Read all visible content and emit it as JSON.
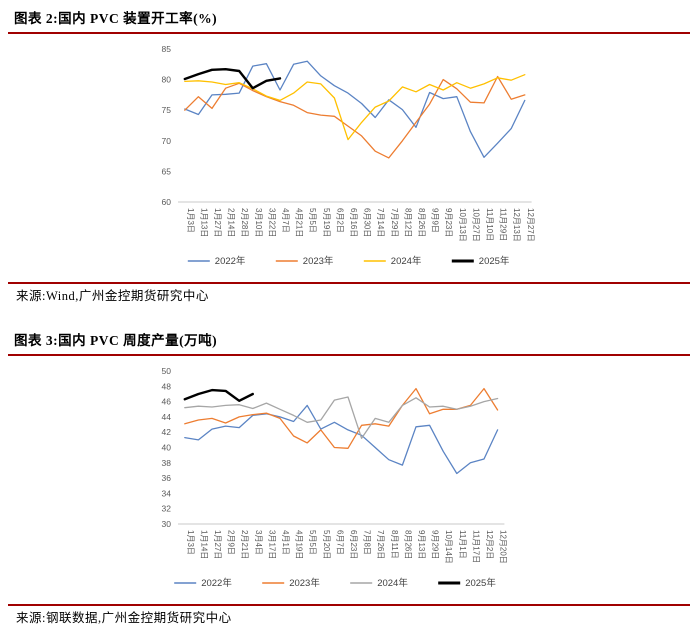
{
  "theme": {
    "rule_color": "#A00000",
    "axis_line_color": "#C9C9C9",
    "tick_label_color": "#595959",
    "legend_label_color": "#404040"
  },
  "figures": [
    {
      "title": "图表 2:国内 PVC 装置开工率(%)",
      "source": "来源:Wind,广州金控期货研究中心",
      "chart_data": {
        "type": "line",
        "title": "国内PVC装置开工率(%)",
        "xlabel": "",
        "ylabel": "",
        "ylim": [
          60,
          85
        ],
        "y_ticks": [
          60,
          65,
          70,
          75,
          80,
          85
        ],
        "grid": false,
        "legend_position": "bottom",
        "categories": [
          "1月3日",
          "1月13日",
          "1月27日",
          "2月14日",
          "2月28日",
          "3月10日",
          "3月22日",
          "4月7日",
          "4月21日",
          "5月5日",
          "5月19日",
          "6月2日",
          "6月16日",
          "6月30日",
          "7月14日",
          "7月29日",
          "8月12日",
          "8月26日",
          "9月9日",
          "9月23日",
          "10月13日",
          "10月27日",
          "11月10日",
          "11月29日",
          "12月13日",
          "12月27日"
        ],
        "series": [
          {
            "name": "2022年",
            "color": "#5B84C4",
            "width": 1.3,
            "values": [
              75.2,
              74.3,
              77.5,
              77.6,
              77.8,
              82.2,
              82.6,
              78.3,
              82.5,
              83.0,
              80.6,
              79.0,
              77.8,
              76.1,
              73.8,
              76.7,
              75.1,
              72.2,
              77.9,
              76.9,
              77.2,
              71.5,
              67.3,
              69.6,
              72.0,
              76.6
            ]
          },
          {
            "name": "2023年",
            "color": "#ED7D31",
            "width": 1.3,
            "values": [
              75.0,
              77.2,
              75.3,
              78.6,
              79.4,
              78.2,
              77.2,
              76.4,
              75.8,
              74.6,
              74.2,
              74.0,
              72.4,
              70.8,
              68.3,
              67.2,
              70.0,
              73.0,
              76.0,
              80.0,
              78.5,
              76.3,
              76.2,
              80.5,
              76.8,
              77.5
            ]
          },
          {
            "name": "2024年",
            "color": "#FFC000",
            "width": 1.3,
            "values": [
              79.7,
              79.8,
              79.6,
              79.2,
              79.5,
              78.5,
              77.3,
              76.6,
              77.8,
              79.6,
              79.3,
              77.0,
              70.2,
              73.0,
              75.5,
              76.5,
              78.8,
              78.0,
              79.2,
              78.3,
              79.5,
              78.6,
              79.3,
              80.3,
              79.9,
              80.8
            ]
          },
          {
            "name": "2025年",
            "color": "#000000",
            "width": 2.4,
            "values": [
              80.1,
              80.9,
              81.6,
              81.7,
              81.4,
              78.6,
              79.8,
              80.2,
              null,
              null,
              null,
              null,
              null,
              null,
              null,
              null,
              null,
              null,
              null,
              null,
              null,
              null,
              null,
              null,
              null,
              null
            ]
          }
        ]
      }
    },
    {
      "title": "图表 3:国内 PVC 周度产量(万吨)",
      "source": "来源:钢联数据,广州金控期货研究中心",
      "chart_data": {
        "type": "line",
        "title": "国内PVC周度产量(万吨)",
        "xlabel": "",
        "ylabel": "",
        "ylim": [
          30,
          50
        ],
        "y_ticks": [
          30,
          32,
          34,
          36,
          38,
          40,
          42,
          44,
          46,
          48,
          50
        ],
        "grid": false,
        "legend_position": "bottom",
        "categories": [
          "1月3日",
          "1月14日",
          "1月27日",
          "2月9日",
          "2月21日",
          "3月4日",
          "3月17日",
          "4月1日",
          "4月19日",
          "5月5日",
          "5月20日",
          "6月7日",
          "6月23日",
          "7月8日",
          "7月26日",
          "8月11日",
          "8月26日",
          "9月13日",
          "9月29日",
          "10月14日",
          "11月1日",
          "11月17日",
          "12月2日",
          "12月20日"
        ],
        "series": [
          {
            "name": "2022年",
            "color": "#5B84C4",
            "width": 1.3,
            "values": [
              41.3,
              41.0,
              42.4,
              42.8,
              42.6,
              44.2,
              44.4,
              44.0,
              43.4,
              45.5,
              42.4,
              43.3,
              42.3,
              41.6,
              40.0,
              38.4,
              37.7,
              42.7,
              42.9,
              39.5,
              36.6,
              38.0,
              38.5,
              42.3
            ]
          },
          {
            "name": "2023年",
            "color": "#ED7D31",
            "width": 1.3,
            "values": [
              43.1,
              43.6,
              43.8,
              43.2,
              44.0,
              44.3,
              44.5,
              43.8,
              41.5,
              40.6,
              42.3,
              40.0,
              39.9,
              42.9,
              43.1,
              42.8,
              45.5,
              47.7,
              44.4,
              45.0,
              45.0,
              45.5,
              47.7,
              44.9
            ]
          },
          {
            "name": "2024年",
            "color": "#A6A6A6",
            "width": 1.3,
            "values": [
              45.2,
              45.4,
              45.3,
              45.5,
              45.6,
              45.1,
              45.8,
              45.0,
              44.2,
              43.3,
              43.6,
              46.2,
              46.6,
              41.2,
              43.8,
              43.3,
              45.5,
              46.5,
              45.3,
              45.4,
              45.0,
              45.4,
              46.0,
              46.4
            ]
          },
          {
            "name": "2025年",
            "color": "#000000",
            "width": 2.4,
            "values": [
              46.3,
              47.0,
              47.5,
              47.4,
              46.1,
              47.0,
              null,
              null,
              null,
              null,
              null,
              null,
              null,
              null,
              null,
              null,
              null,
              null,
              null,
              null,
              null,
              null,
              null,
              null
            ]
          }
        ]
      }
    }
  ]
}
